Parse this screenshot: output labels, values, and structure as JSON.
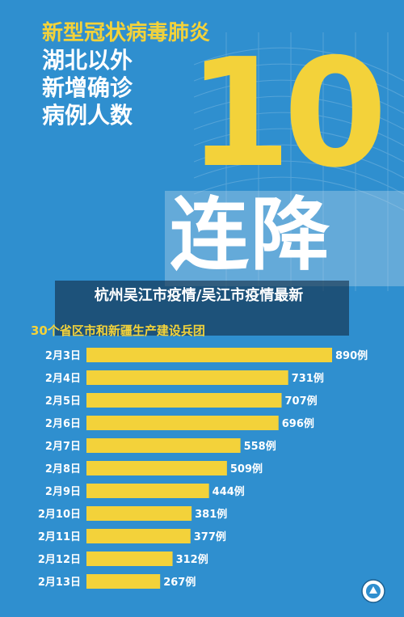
{
  "headline": {
    "line1": "新型冠状病毒肺炎",
    "line2": "湖北以外",
    "line3": "新增确诊",
    "line4": "病例人数"
  },
  "big_number": "10",
  "drop_text": "连降",
  "overlay_title": "杭州吴江市疫情/吴江市疫情最新",
  "subtitle": "30个省区市和新疆生产建设兵团",
  "colors": {
    "background": "#2f8fcf",
    "accent_yellow": "#f3d23a",
    "bar": "#f3d23a",
    "text_white": "#ffffff"
  },
  "chart_data": {
    "type": "bar",
    "orientation": "horizontal",
    "title": "",
    "xlabel": "",
    "ylabel": "",
    "categories": [
      "2月3日",
      "2月4日",
      "2月5日",
      "2月6日",
      "2月7日",
      "2月8日",
      "2月9日",
      "2月10日",
      "2月11日",
      "2月12日",
      "2月13日"
    ],
    "values": [
      890,
      731,
      707,
      696,
      558,
      509,
      444,
      381,
      377,
      312,
      267
    ],
    "value_labels": [
      "890例",
      "731例",
      "707例",
      "696例",
      "558例",
      "509例",
      "444例",
      "381例",
      "377例",
      "312例",
      "267例"
    ],
    "xlim": [
      0,
      890
    ],
    "grid": false,
    "legend": "none"
  }
}
